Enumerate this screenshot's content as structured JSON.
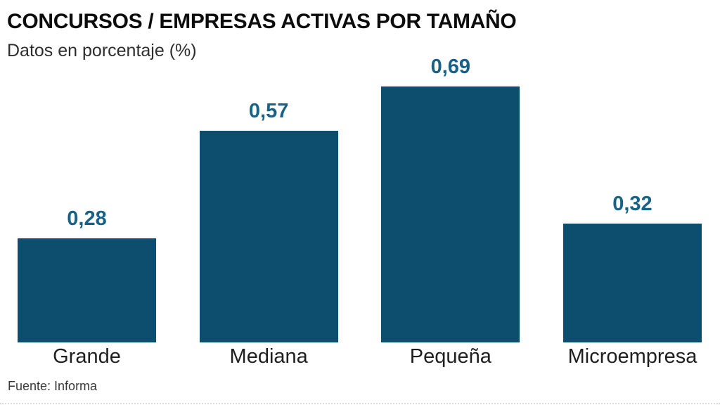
{
  "header": {
    "title": "CONCURSOS / EMPRESAS ACTIVAS POR TAMAÑO",
    "subtitle": "Datos en porcentaje (%)"
  },
  "source": "Fuente: Informa",
  "colors": {
    "bar": "#0d4d6e",
    "value_label": "#186287",
    "title": "#0c0c0c",
    "text": "#2e2e2e",
    "source_text": "#3a3a3a"
  },
  "chart_data": {
    "type": "bar",
    "title": "CONCURSOS / EMPRESAS ACTIVAS POR TAMAÑO",
    "subtitle": "Datos en porcentaje (%)",
    "categories": [
      "Grande",
      "Mediana",
      "Pequeña",
      "Microempresa"
    ],
    "values": [
      0.28,
      0.57,
      0.69,
      0.32
    ],
    "value_labels": [
      "0,28",
      "0,57",
      "0,69",
      "0,32"
    ],
    "xlabel": "",
    "ylabel": "",
    "ylim": [
      0,
      0.69
    ],
    "grid": false,
    "legend": "none",
    "source": "Fuente: Informa"
  }
}
